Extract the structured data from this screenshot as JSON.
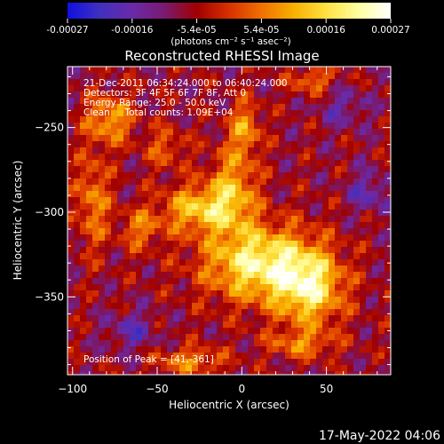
{
  "chart_data": {
    "type": "heatmap",
    "title": "Reconstructed RHESSI Image",
    "xlabel": "Heliocentric X (arcsec)",
    "ylabel": "Heliocentric Y (arcsec)",
    "xlim": [
      -103,
      88
    ],
    "ylim": [
      -396,
      -214
    ],
    "x_ticks": [
      -100,
      -50,
      0,
      50
    ],
    "y_ticks": [
      -250,
      -300,
      -350
    ],
    "annotations": [
      "21-Dec-2011 06:34:24.000 to 06:40:24.000",
      "Detectors: 3F 4F 5F 6F 7F 8F, Att 0",
      "Energy Range: 25.0 - 50.0 keV",
      "Clean     Total counts: 1.09E+04"
    ],
    "peak_label": "Position of Peak = [41,-361]",
    "peak": [
      41,
      -361
    ],
    "colorbar": {
      "min": -0.00027,
      "max": 0.00027,
      "tick_labels": [
        "-0.00027",
        "-0.00016",
        "-5.4e-05",
        "5.4e-05",
        "0.00016",
        "0.00027"
      ],
      "units_label": "(photons cm⁻² s⁻¹ asec⁻²)",
      "colors": [
        "#1010e0",
        "#4030c0",
        "#6a2aa8",
        "#7a1a70",
        "#a00000",
        "#d83000",
        "#f07000",
        "#f8b000",
        "#ffe040",
        "#ffffa0",
        "#ffffff"
      ]
    },
    "sources": [
      {
        "x": 10,
        "y": -330,
        "amp": 0.00027,
        "sx": 32,
        "sy": 22
      },
      {
        "x": 40,
        "y": -345,
        "amp": 0.00024,
        "sx": 20,
        "sy": 22
      },
      {
        "x": -25,
        "y": -298,
        "amp": 0.0002,
        "sx": 22,
        "sy": 14
      },
      {
        "x": -5,
        "y": -285,
        "amp": 0.00016,
        "sx": 14,
        "sy": 24
      },
      {
        "x": 2,
        "y": -250,
        "amp": 0.00015,
        "sx": 9,
        "sy": 16
      },
      {
        "x": -78,
        "y": -245,
        "amp": 0.00017,
        "sx": 14,
        "sy": 14
      },
      {
        "x": -88,
        "y": -293,
        "amp": 0.00014,
        "sx": 10,
        "sy": 28
      },
      {
        "x": -60,
        "y": -310,
        "amp": 0.00012,
        "sx": 12,
        "sy": 12
      },
      {
        "x": 42,
        "y": -222,
        "amp": 0.00012,
        "sx": 14,
        "sy": 8
      },
      {
        "x": -30,
        "y": -388,
        "amp": 0.00014,
        "sx": 20,
        "sy": 8
      },
      {
        "x": 35,
        "y": -378,
        "amp": 0.00012,
        "sx": 20,
        "sy": 8
      },
      {
        "x": -45,
        "y": -262,
        "amp": 0.0001,
        "sx": 12,
        "sy": 12
      },
      {
        "x": 75,
        "y": -288,
        "amp": -0.0001,
        "sx": 12,
        "sy": 12
      },
      {
        "x": 60,
        "y": -238,
        "amp": -8e-05,
        "sx": 14,
        "sy": 12
      },
      {
        "x": -65,
        "y": -370,
        "amp": -9e-05,
        "sx": 14,
        "sy": 12
      }
    ]
  },
  "footer": {
    "date": "17-May-2022 04:06"
  }
}
